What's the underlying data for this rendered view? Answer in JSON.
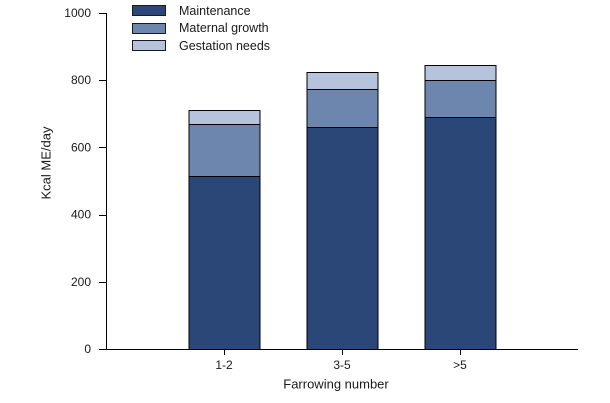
{
  "chart_data": {
    "type": "bar",
    "stacked": true,
    "title": "",
    "xlabel": "Farrowing number",
    "ylabel": "Kcal ME/day",
    "categories": [
      "1-2",
      "3-5",
      ">5"
    ],
    "series": [
      {
        "name": "Maintenance",
        "color": "#2A4778",
        "values": [
          515,
          660,
          690
        ]
      },
      {
        "name": "Maternal growth",
        "color": "#6D86AD",
        "values": [
          155,
          115,
          110
        ]
      },
      {
        "name": "Gestation needs",
        "color": "#B5C3DD",
        "values": [
          40,
          50,
          45
        ]
      }
    ],
    "stack_totals": [
      710,
      825,
      845
    ],
    "ylim": [
      0,
      1000
    ],
    "yticks": [
      0,
      200,
      400,
      600,
      800,
      1000
    ],
    "grid": false,
    "legend_position": "top-left",
    "axis_color": "#000000",
    "bar_border_color": "#000000",
    "background": "#ffffff"
  }
}
